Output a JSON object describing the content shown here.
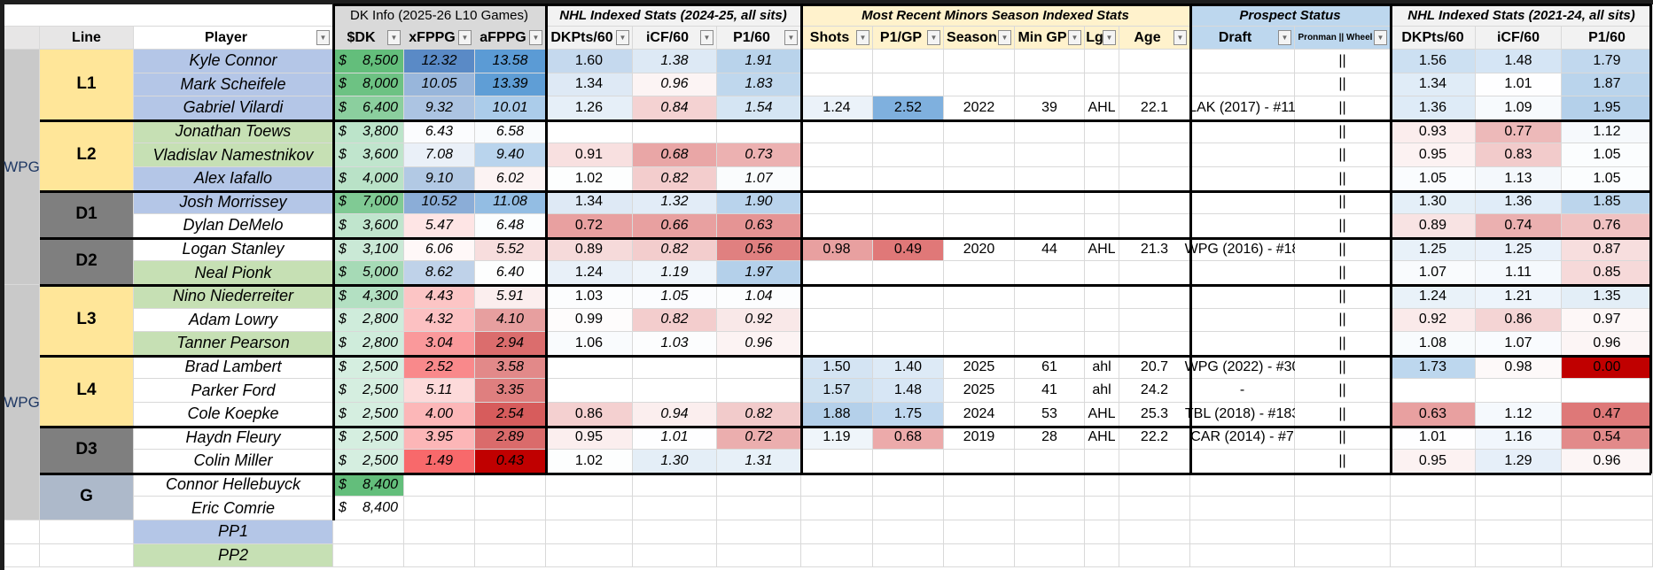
{
  "header_groups": {
    "dk_info": "DK Info (2025-26 L10 Games)",
    "nhl_recent": "NHL Indexed Stats (2024-25, all sits)",
    "minors": "Most Recent Minors Season Indexed Stats",
    "prospect": "Prospect Status",
    "nhl_hist": "NHL Indexed Stats (2021-24, all sits)"
  },
  "columns": {
    "line": "Line",
    "player": "Player",
    "dk": "$DK",
    "xf": "xFPPG",
    "af": "aFPPG",
    "dkp": "DKPts/60",
    "icf": "iCF/60",
    "p1": "P1/60",
    "shots": "Shots",
    "p1gp": "P1/GP",
    "season": "Season",
    "mingp": "Min GP",
    "lg": "Lg",
    "age": "Age",
    "draft": "Draft",
    "pron": "Pronman || Wheel",
    "n_dkp": "DKPts/60",
    "n_icf": "iCF/60",
    "n_p1": "P1/60"
  },
  "filter_icon": "dropdown-filter-icon",
  "colors": {
    "name_blue": "#b4c6e7",
    "name_green": "#c6e0b4",
    "line_forward": "#ffe699",
    "line_defense": "#7f7f7f",
    "line_goalie": "#adb9ca",
    "team_bg": "#c9c9c9",
    "heat_red": "#c00000",
    "heat_blue": "#5b9bd5",
    "dk_green": "#63be7b"
  },
  "teams": [
    {
      "label": "WPG"
    },
    {
      "label": "WPG"
    }
  ],
  "lines": [
    {
      "label": "L1",
      "type": "forward"
    },
    {
      "label": "L2",
      "type": "forward"
    },
    {
      "label": "D1",
      "type": "defense"
    },
    {
      "label": "D2",
      "type": "defense"
    },
    {
      "label": "L3",
      "type": "forward"
    },
    {
      "label": "L4",
      "type": "forward"
    },
    {
      "label": "D3",
      "type": "defense"
    },
    {
      "label": "G",
      "type": "goalie"
    }
  ],
  "rows": [
    {
      "name": "Kyle Connor",
      "hl": "blue",
      "dk": "8,500",
      "xf": "12.32",
      "af": "13.58",
      "dkp": "1.60",
      "icf": "1.38",
      "p1": "1.91",
      "shots": "",
      "p1gp": "",
      "season": "",
      "mingp": "",
      "lg": "",
      "age": "",
      "draft": "",
      "pron": "||",
      "n_dkp": "1.56",
      "n_icf": "1.48",
      "n_p1": "1.79"
    },
    {
      "name": "Mark Scheifele",
      "hl": "blue",
      "dk": "8,000",
      "xf": "10.05",
      "af": "13.39",
      "dkp": "1.34",
      "icf": "0.96",
      "p1": "1.83",
      "shots": "",
      "p1gp": "",
      "season": "",
      "mingp": "",
      "lg": "",
      "age": "",
      "draft": "",
      "pron": "||",
      "n_dkp": "1.34",
      "n_icf": "1.01",
      "n_p1": "1.87"
    },
    {
      "name": "Gabriel Vilardi",
      "hl": "blue",
      "dk": "6,400",
      "xf": "9.32",
      "af": "10.01",
      "dkp": "1.26",
      "icf": "0.84",
      "p1": "1.54",
      "shots": "1.24",
      "p1gp": "2.52",
      "season": "2022",
      "mingp": "39",
      "lg": "AHL",
      "age": "22.1",
      "draft": "LAK (2017) - #11",
      "pron": "||",
      "n_dkp": "1.36",
      "n_icf": "1.09",
      "n_p1": "1.95"
    },
    {
      "name": "Jonathan Toews",
      "hl": "green",
      "dk": "3,800",
      "xf": "6.43",
      "af": "6.58",
      "dkp": "",
      "icf": "",
      "p1": "",
      "shots": "",
      "p1gp": "",
      "season": "",
      "mingp": "",
      "lg": "",
      "age": "",
      "draft": "",
      "pron": "||",
      "n_dkp": "0.93",
      "n_icf": "0.77",
      "n_p1": "1.12"
    },
    {
      "name": "Vladislav Namestnikov",
      "hl": "green",
      "dk": "3,600",
      "xf": "7.08",
      "af": "9.40",
      "dkp": "0.91",
      "icf": "0.68",
      "p1": "0.73",
      "shots": "",
      "p1gp": "",
      "season": "",
      "mingp": "",
      "lg": "",
      "age": "",
      "draft": "",
      "pron": "||",
      "n_dkp": "0.95",
      "n_icf": "0.83",
      "n_p1": "1.05"
    },
    {
      "name": "Alex Iafallo",
      "hl": "blue",
      "dk": "4,000",
      "xf": "9.10",
      "af": "6.02",
      "dkp": "1.02",
      "icf": "0.82",
      "p1": "1.07",
      "shots": "",
      "p1gp": "",
      "season": "",
      "mingp": "",
      "lg": "",
      "age": "",
      "draft": "",
      "pron": "||",
      "n_dkp": "1.05",
      "n_icf": "1.13",
      "n_p1": "1.05"
    },
    {
      "name": "Josh Morrissey",
      "hl": "blue",
      "dk": "7,000",
      "xf": "10.52",
      "af": "11.08",
      "dkp": "1.34",
      "icf": "1.32",
      "p1": "1.90",
      "shots": "",
      "p1gp": "",
      "season": "",
      "mingp": "",
      "lg": "",
      "age": "",
      "draft": "",
      "pron": "||",
      "n_dkp": "1.30",
      "n_icf": "1.36",
      "n_p1": "1.85"
    },
    {
      "name": "Dylan DeMelo",
      "hl": "none",
      "dk": "3,600",
      "xf": "5.47",
      "af": "6.48",
      "dkp": "0.72",
      "icf": "0.66",
      "p1": "0.63",
      "shots": "",
      "p1gp": "",
      "season": "",
      "mingp": "",
      "lg": "",
      "age": "",
      "draft": "",
      "pron": "||",
      "n_dkp": "0.89",
      "n_icf": "0.74",
      "n_p1": "0.76"
    },
    {
      "name": "Logan Stanley",
      "hl": "none",
      "dk": "3,100",
      "xf": "6.06",
      "af": "5.52",
      "dkp": "0.89",
      "icf": "0.82",
      "p1": "0.56",
      "shots": "0.98",
      "p1gp": "0.49",
      "season": "2020",
      "mingp": "44",
      "lg": "AHL",
      "age": "21.3",
      "draft": "WPG (2016) - #18",
      "pron": "||",
      "n_dkp": "1.25",
      "n_icf": "1.25",
      "n_p1": "0.87"
    },
    {
      "name": "Neal Pionk",
      "hl": "green",
      "dk": "5,000",
      "xf": "8.62",
      "af": "6.40",
      "dkp": "1.24",
      "icf": "1.19",
      "p1": "1.97",
      "shots": "",
      "p1gp": "",
      "season": "",
      "mingp": "",
      "lg": "",
      "age": "",
      "draft": "",
      "pron": "||",
      "n_dkp": "1.07",
      "n_icf": "1.11",
      "n_p1": "0.85"
    },
    {
      "name": "Nino Niederreiter",
      "hl": "green",
      "dk": "4,300",
      "xf": "4.43",
      "af": "5.91",
      "dkp": "1.03",
      "icf": "1.05",
      "p1": "1.04",
      "shots": "",
      "p1gp": "",
      "season": "",
      "mingp": "",
      "lg": "",
      "age": "",
      "draft": "",
      "pron": "||",
      "n_dkp": "1.24",
      "n_icf": "1.21",
      "n_p1": "1.35"
    },
    {
      "name": "Adam Lowry",
      "hl": "none",
      "dk": "2,800",
      "xf": "4.32",
      "af": "4.10",
      "dkp": "0.99",
      "icf": "0.82",
      "p1": "0.92",
      "shots": "",
      "p1gp": "",
      "season": "",
      "mingp": "",
      "lg": "",
      "age": "",
      "draft": "",
      "pron": "||",
      "n_dkp": "0.92",
      "n_icf": "0.86",
      "n_p1": "0.97"
    },
    {
      "name": "Tanner Pearson",
      "hl": "green",
      "dk": "2,800",
      "xf": "3.04",
      "af": "2.94",
      "dkp": "1.06",
      "icf": "1.03",
      "p1": "0.96",
      "shots": "",
      "p1gp": "",
      "season": "",
      "mingp": "",
      "lg": "",
      "age": "",
      "draft": "",
      "pron": "||",
      "n_dkp": "1.08",
      "n_icf": "1.07",
      "n_p1": "0.96"
    },
    {
      "name": "Brad Lambert",
      "hl": "none",
      "dk": "2,500",
      "xf": "2.52",
      "af": "3.58",
      "dkp": "",
      "icf": "",
      "p1": "",
      "shots": "1.50",
      "p1gp": "1.40",
      "season": "2025",
      "mingp": "61",
      "lg": "ahl",
      "age": "20.7",
      "draft": "WPG (2022) - #30",
      "pron": "||",
      "n_dkp": "1.73",
      "n_icf": "0.98",
      "n_p1": "0.00"
    },
    {
      "name": "Parker Ford",
      "hl": "none",
      "dk": "2,500",
      "xf": "5.11",
      "af": "3.35",
      "dkp": "",
      "icf": "",
      "p1": "",
      "shots": "1.57",
      "p1gp": "1.48",
      "season": "2025",
      "mingp": "41",
      "lg": "ahl",
      "age": "24.2",
      "draft": "-",
      "pron": "||",
      "n_dkp": "",
      "n_icf": "",
      "n_p1": ""
    },
    {
      "name": "Cole Koepke",
      "hl": "none",
      "dk": "2,500",
      "xf": "4.00",
      "af": "2.54",
      "dkp": "0.86",
      "icf": "0.94",
      "p1": "0.82",
      "shots": "1.88",
      "p1gp": "1.75",
      "season": "2024",
      "mingp": "53",
      "lg": "AHL",
      "age": "25.3",
      "draft": "TBL (2018) - #183",
      "pron": "||",
      "n_dkp": "0.63",
      "n_icf": "1.12",
      "n_p1": "0.47"
    },
    {
      "name": "Haydn Fleury",
      "hl": "none",
      "dk": "2,500",
      "xf": "3.95",
      "af": "2.89",
      "dkp": "0.95",
      "icf": "1.01",
      "p1": "0.72",
      "shots": "1.19",
      "p1gp": "0.68",
      "season": "2019",
      "mingp": "28",
      "lg": "AHL",
      "age": "22.2",
      "draft": "CAR (2014) - #7",
      "pron": "||",
      "n_dkp": "1.01",
      "n_icf": "1.16",
      "n_p1": "0.54"
    },
    {
      "name": "Colin Miller",
      "hl": "none",
      "dk": "2,500",
      "xf": "1.49",
      "af": "0.43",
      "dkp": "1.02",
      "icf": "1.30",
      "p1": "1.31",
      "shots": "",
      "p1gp": "",
      "season": "",
      "mingp": "",
      "lg": "",
      "age": "",
      "draft": "",
      "pron": "||",
      "n_dkp": "0.95",
      "n_icf": "1.29",
      "n_p1": "0.96"
    },
    {
      "name": "Connor Hellebuyck",
      "hl": "none",
      "dk": "8,400",
      "dk_bg": "#63be7b"
    },
    {
      "name": "Eric Comrie",
      "hl": "none",
      "dk": "8,400",
      "dk_bg": "#ffffff"
    }
  ],
  "power_play": [
    {
      "label": "PP1",
      "hl": "blue"
    },
    {
      "label": "PP2",
      "hl": "green"
    }
  ],
  "currency_symbol": "$"
}
